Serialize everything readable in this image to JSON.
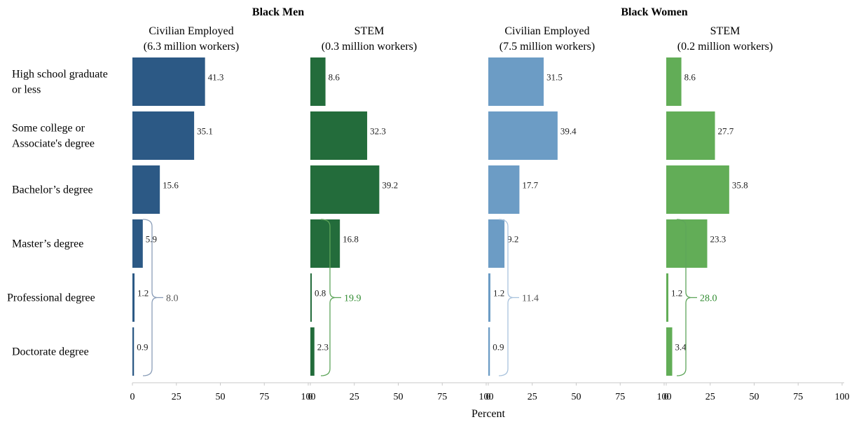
{
  "chart_data": {
    "type": "bar",
    "orientation": "horizontal",
    "groups": [
      "Black Men",
      "Black Women"
    ],
    "categories": [
      "High school graduate or less",
      "Some college or Associate's degree",
      "Bachelor's degree",
      "Master's degree",
      "Professional degree",
      "Doctorate degree"
    ],
    "category_lines": [
      [
        "High school graduate",
        "or less"
      ],
      [
        "Some college or",
        "Associate's degree"
      ],
      [
        "Bachelor’s degree"
      ],
      [
        "Master’s degree"
      ],
      [
        "Professional degree"
      ],
      [
        "Doctorate degree"
      ]
    ],
    "panels": [
      {
        "group": "Black Men",
        "title_lines": [
          "Civilian Employed",
          "(6.3 million workers)"
        ],
        "color": "#2c5985",
        "values": [
          41.3,
          35.1,
          15.6,
          5.9,
          1.2,
          0.9
        ],
        "value_labels": [
          "41.3",
          "35.1",
          "15.6",
          "5.9",
          "1.2",
          "0.9"
        ],
        "bracket_total": "8.0",
        "bracket_color": "#8a9db8",
        "bracket_text_color": "#555555"
      },
      {
        "group": "Black Men",
        "title_lines": [
          "STEM",
          "(0.3 million workers)"
        ],
        "color": "#236c3b",
        "values": [
          8.6,
          32.3,
          39.2,
          16.8,
          0.8,
          2.3
        ],
        "value_labels": [
          "8.6",
          "32.3",
          "39.2",
          "16.8",
          "0.8",
          "2.3"
        ],
        "bracket_total": "19.9",
        "bracket_color": "#5ea55a",
        "bracket_text_color": "#2e8a2e"
      },
      {
        "group": "Black Women",
        "title_lines": [
          "Civilian Employed",
          "(7.5 million workers)"
        ],
        "color": "#6c9cc5",
        "values": [
          31.5,
          39.4,
          17.7,
          9.2,
          1.2,
          0.9
        ],
        "value_labels": [
          "31.5",
          "39.4",
          "17.7",
          "9.2",
          "1.2",
          "0.9"
        ],
        "bracket_total": "11.4",
        "bracket_color": "#a9c3dd",
        "bracket_text_color": "#555555"
      },
      {
        "group": "Black Women",
        "title_lines": [
          "STEM",
          "(0.2 million workers)"
        ],
        "color": "#62ad57",
        "values": [
          8.6,
          27.7,
          35.8,
          23.3,
          1.2,
          3.4
        ],
        "value_labels": [
          "8.6",
          "27.7",
          "35.8",
          "23.3",
          "1.2",
          "3.4"
        ],
        "bracket_total": "28.0",
        "bracket_color": "#5ea55a",
        "bracket_text_color": "#2e8a2e"
      }
    ],
    "bracket_rows": [
      3,
      5
    ],
    "xlim": [
      0,
      100
    ],
    "xticks": [
      "0",
      "25",
      "50",
      "75",
      "100"
    ],
    "xlabel": "Percent",
    "grid": false
  }
}
